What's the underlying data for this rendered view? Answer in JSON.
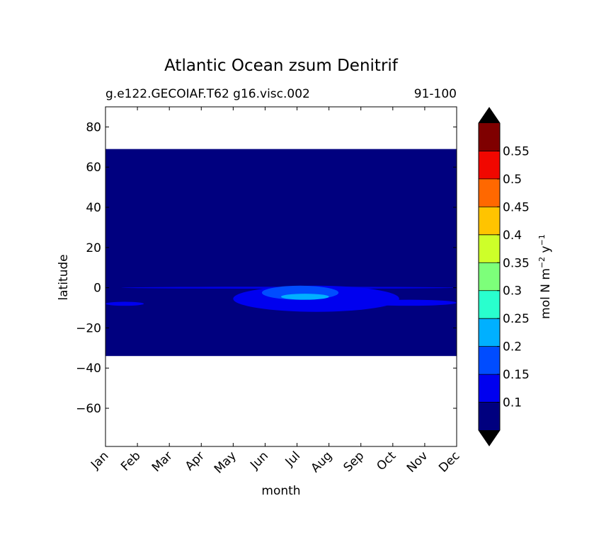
{
  "chart_data": {
    "type": "heatmap",
    "title": "Atlantic Ocean zsum Denitrif",
    "subtitle_left": "g.e122.GECOIAF.T62 g16.visc.002",
    "subtitle_right": "91-100",
    "xlabel": "month",
    "ylabel": "latitude",
    "x_categories": [
      "Jan",
      "Feb",
      "Mar",
      "Apr",
      "May",
      "Jun",
      "Jul",
      "Aug",
      "Sep",
      "Oct",
      "Nov",
      "Dec"
    ],
    "ylim": [
      -79,
      90
    ],
    "y_ticks": [
      80,
      60,
      40,
      20,
      0,
      -20,
      -40,
      -60
    ],
    "y_tick_labels": [
      "80",
      "60",
      "40",
      "20",
      "0",
      "−20",
      "−40",
      "−60"
    ],
    "data_extent": {
      "lat_min": -34,
      "lat_max": 69
    },
    "background_value_level": 0,
    "features": [
      {
        "description_level": 1,
        "month_range": [
          4.0,
          9.2
        ],
        "lat_range": [
          -12,
          1
        ],
        "shape": "blob"
      },
      {
        "description_level": 1,
        "month_range": [
          0.0,
          1.2
        ],
        "lat_range": [
          -9,
          -7
        ],
        "shape": "band"
      },
      {
        "description_level": 1,
        "month_range": [
          8.0,
          11.0
        ],
        "lat_range": [
          -9,
          -6
        ],
        "shape": "band"
      },
      {
        "description_level": 1,
        "month_range": [
          0.5,
          11.0
        ],
        "lat_range": [
          -0.5,
          0.5
        ],
        "shape": "line"
      },
      {
        "description_level": 2,
        "month_range": [
          4.9,
          7.3
        ],
        "lat_range": [
          -6,
          1
        ],
        "shape": "patch"
      },
      {
        "description_level": 3,
        "month_range": [
          5.5,
          7.0
        ],
        "lat_range": [
          -6,
          -3
        ],
        "shape": "speck"
      }
    ],
    "colorbar": {
      "label": "mol N m",
      "label_sup1": "−2",
      "label_mid": " y",
      "label_sup2": "−1",
      "levels": [
        0.05,
        0.1,
        0.15,
        0.2,
        0.25,
        0.3,
        0.35,
        0.4,
        0.45,
        0.5,
        0.55,
        0.6
      ],
      "tick_labels": [
        "0.1",
        "0.15",
        "0.2",
        "0.25",
        "0.3",
        "0.35",
        "0.4",
        "0.45",
        "0.5",
        "0.55"
      ],
      "colors": [
        "#00007f",
        "#0000ef",
        "#004cff",
        "#00b0ff",
        "#29ffce",
        "#7dff7a",
        "#ceff29",
        "#ffc400",
        "#ff6800",
        "#f10700",
        "#7f0000"
      ],
      "extend_colors": {
        "low": "#000000",
        "high": "#000000"
      }
    },
    "grid": false
  }
}
